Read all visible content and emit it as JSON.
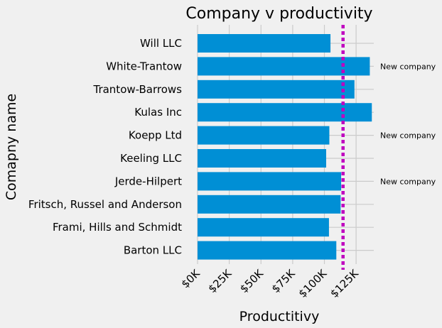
{
  "chart_data": {
    "type": "bar",
    "orientation": "horizontal",
    "title": "Company v productivity",
    "xlabel": "Productitivy",
    "ylabel": "Comapny name",
    "categories": [
      "Barton LLC",
      "Frami, Hills and Schmidt",
      "Fritsch, Russel and Anderson",
      "Jerde-Hilpert",
      "Keeling LLC",
      "Koepp Ltd",
      "Kulas Inc",
      "Trantow-Barrows",
      "White-Trantow",
      "Will LLC"
    ],
    "values": [
      109400,
      103600,
      112800,
      113200,
      101400,
      103900,
      137400,
      123700,
      135800,
      104800
    ],
    "xlim": [
      0,
      140000
    ],
    "xticks": [
      0,
      25000,
      50000,
      75000,
      100000,
      125000
    ],
    "xtick_labels": [
      "$0K",
      "$25K",
      "$50K",
      "$75K",
      "$100K",
      "$125K"
    ],
    "mean_line": 114700,
    "annotations": [
      {
        "category": "White-Trantow",
        "text": "New company"
      },
      {
        "category": "Koepp Ltd",
        "text": "New company"
      },
      {
        "category": "Jerde-Hilpert",
        "text": "New company"
      }
    ],
    "grid": true,
    "style": "fivethirtyeight",
    "colors": {
      "bar": "#008fd5",
      "mean_line": "#bf00bf",
      "grid": "#cbcbcb",
      "background": "#f0f0f0"
    }
  }
}
